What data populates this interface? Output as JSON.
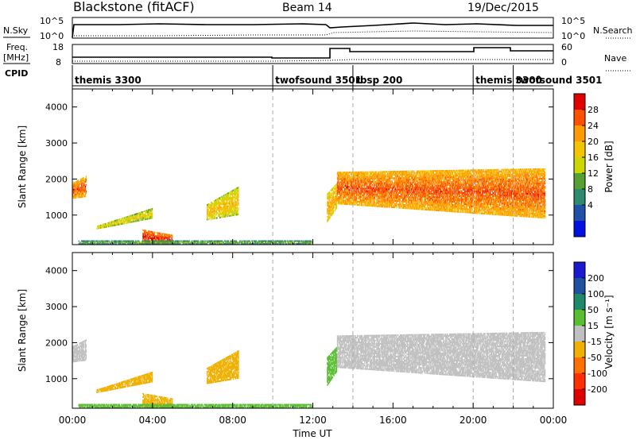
{
  "header": {
    "station": "Blackstone (fitACF)",
    "beam": "Beam 14",
    "date": "19/Dec/2015"
  },
  "noise_panel": {
    "left_label": "N.Sky",
    "right_label": "N.Search",
    "ticks": [
      "10^5",
      "10^0"
    ]
  },
  "freq_panel": {
    "left_label_1": "Freq.",
    "left_label_2": "[MHz]",
    "right_label": "Nave",
    "left_ticks": [
      "18",
      "8"
    ],
    "right_ticks": [
      "60",
      "0"
    ]
  },
  "cpid_panel": {
    "label": "CPID",
    "entries": [
      {
        "name": "themis 3300",
        "start_hour": 0
      },
      {
        "name": "twofsound 3501",
        "start_hour": 10
      },
      {
        "name": "rbsp 200",
        "start_hour": 14
      },
      {
        "name": "themis 3300",
        "start_hour": 20
      },
      {
        "name": "twofsound 3501",
        "start_hour": 22
      }
    ]
  },
  "power_colorbar": {
    "title": "Power [dB]",
    "ticks": [
      "28",
      "24",
      "20",
      "16",
      "12",
      "8",
      "4"
    ],
    "colors": [
      "#e00000",
      "#ff5000",
      "#ff9a00",
      "#f4c400",
      "#ccd600",
      "#54a030",
      "#2e8a6e",
      "#2050a8",
      "#0010e0"
    ]
  },
  "velocity_colorbar": {
    "title": "Velocity [m s⁻¹]",
    "ticks": [
      "200",
      "100",
      "50",
      "15",
      "-15",
      "-50",
      "-100",
      "-200"
    ],
    "colors": [
      "#1a1ad0",
      "#2050a0",
      "#1f8a6a",
      "#5abe32",
      "#c0c0c0",
      "#f0b000",
      "#ff7000",
      "#ff3000",
      "#e00000"
    ]
  },
  "axes": {
    "ylabel": "Slant Range [km]",
    "xlabel": "Time UT",
    "x_ticks": [
      "00:00",
      "04:00",
      "08:00",
      "12:00",
      "16:00",
      "20:00",
      "00:00"
    ],
    "y_ticks": [
      "1000",
      "2000",
      "3000",
      "4000"
    ]
  },
  "chart_data": [
    {
      "type": "heatmap",
      "title": "Power",
      "xlabel": "Time UT",
      "ylabel": "Slant Range [km]",
      "xlim_hours": [
        0,
        24
      ],
      "ylim_km": [
        180,
        4500
      ],
      "colorbar_range_db": [
        0,
        32
      ],
      "regions": [
        {
          "t": [
            0.0,
            0.7
          ],
          "r_lo": [
            1450,
            1500
          ],
          "r_hi": [
            1900,
            2100
          ],
          "v": 24
        },
        {
          "t": [
            1.2,
            4.0
          ],
          "r_lo": [
            600,
            900
          ],
          "r_hi": [
            700,
            1200
          ],
          "v": 16
        },
        {
          "t": [
            3.5,
            5.0
          ],
          "r_lo": [
            200,
            200
          ],
          "r_hi": [
            600,
            450
          ],
          "v": 26
        },
        {
          "t": [
            6.7,
            8.3
          ],
          "r_lo": [
            850,
            1000
          ],
          "r_hi": [
            1300,
            1800
          ],
          "v": 18
        },
        {
          "t": [
            12.7,
            13.2
          ],
          "r_lo": [
            800,
            1200
          ],
          "r_hi": [
            1600,
            1900
          ],
          "v": 20
        },
        {
          "t": [
            13.2,
            23.6
          ],
          "r_lo": [
            1300,
            900
          ],
          "r_hi": [
            2200,
            2300
          ],
          "v": 24
        },
        {
          "t": [
            0.3,
            12.0
          ],
          "r_lo": [
            180,
            180
          ],
          "r_hi": [
            300,
            300
          ],
          "v": 10
        }
      ],
      "vertical_markers_hours": [
        10,
        14,
        20,
        22
      ]
    },
    {
      "type": "heatmap",
      "title": "Velocity",
      "xlabel": "Time UT",
      "ylabel": "Slant Range [km]",
      "xlim_hours": [
        0,
        24
      ],
      "ylim_km": [
        180,
        4500
      ],
      "colorbar_range_ms": [
        -250,
        250
      ],
      "regions": [
        {
          "t": [
            0.0,
            0.7
          ],
          "r_lo": [
            1450,
            1500
          ],
          "r_hi": [
            1900,
            2100
          ],
          "v": 0
        },
        {
          "t": [
            1.2,
            4.0
          ],
          "r_lo": [
            600,
            900
          ],
          "r_hi": [
            700,
            1200
          ],
          "v": -40
        },
        {
          "t": [
            3.5,
            5.0
          ],
          "r_lo": [
            200,
            200
          ],
          "r_hi": [
            600,
            450
          ],
          "v": -40
        },
        {
          "t": [
            6.7,
            8.3
          ],
          "r_lo": [
            850,
            1000
          ],
          "r_hi": [
            1300,
            1800
          ],
          "v": -40
        },
        {
          "t": [
            12.7,
            13.2
          ],
          "r_lo": [
            800,
            1200
          ],
          "r_hi": [
            1600,
            1900
          ],
          "v": 30
        },
        {
          "t": [
            13.2,
            23.6
          ],
          "r_lo": [
            1300,
            900
          ],
          "r_hi": [
            2200,
            2300
          ],
          "v": 0
        },
        {
          "t": [
            0.3,
            12.0
          ],
          "r_lo": [
            180,
            180
          ],
          "r_hi": [
            300,
            300
          ],
          "v": 30
        }
      ],
      "vertical_markers_hours": [
        10,
        14,
        20,
        22
      ]
    }
  ]
}
